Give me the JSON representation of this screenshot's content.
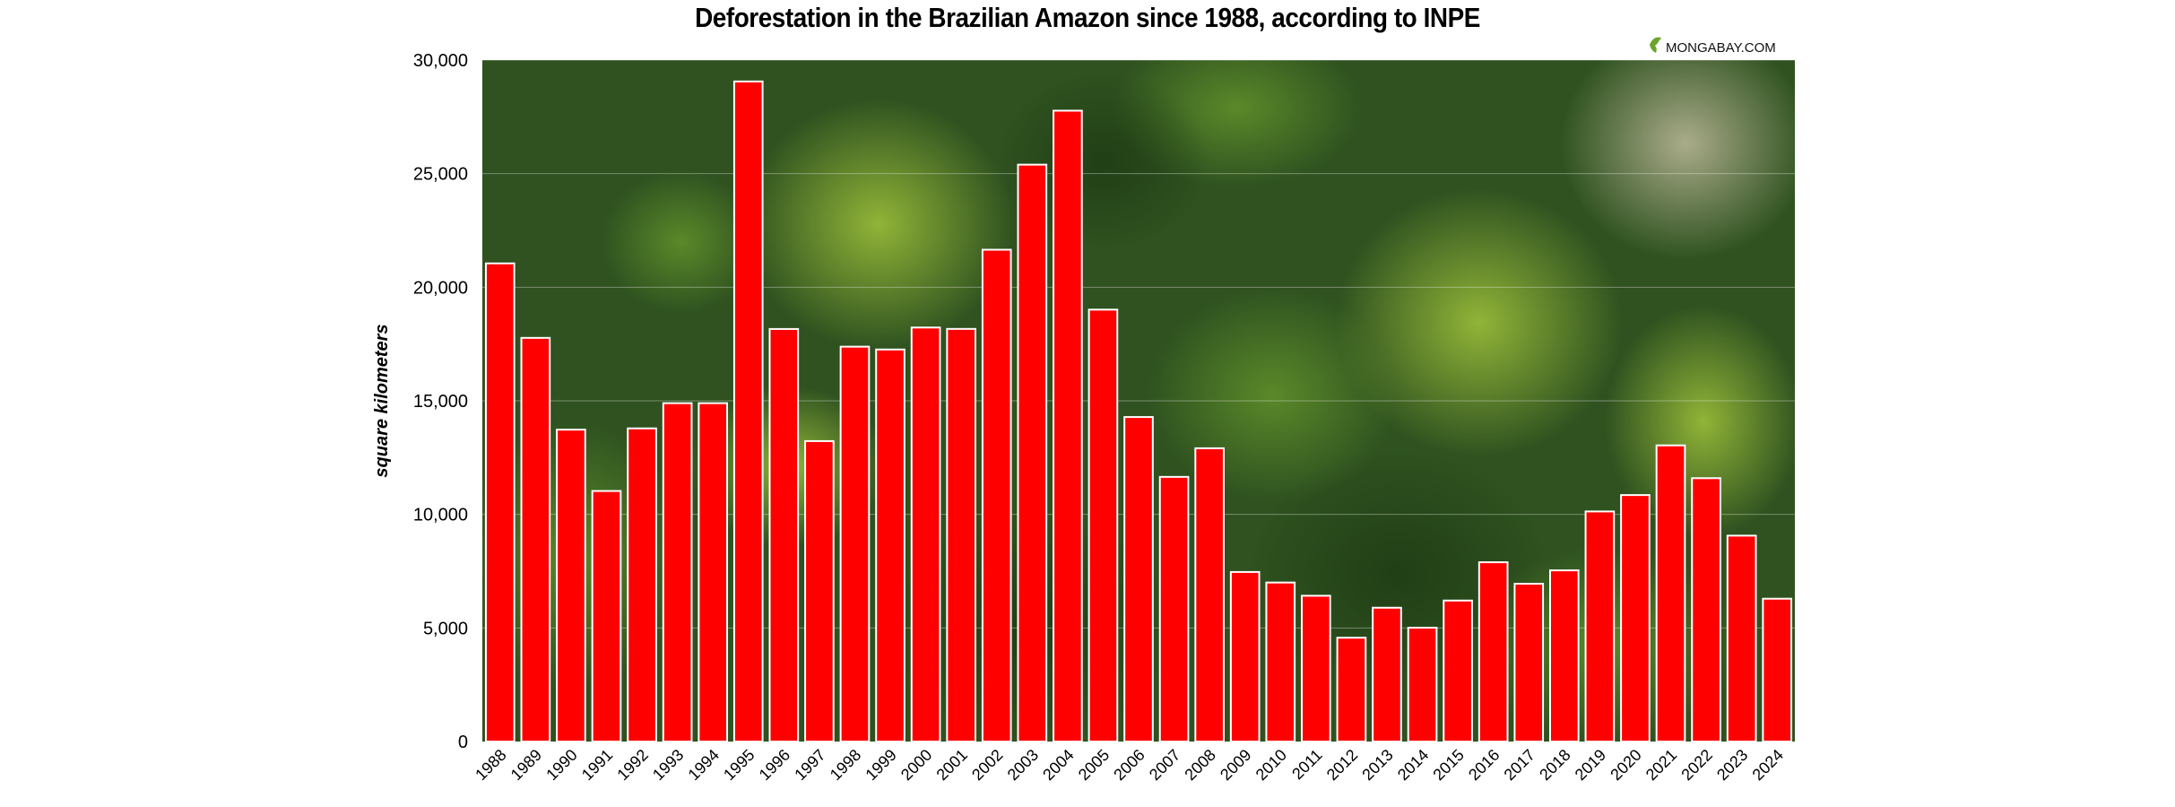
{
  "chart_data": {
    "type": "bar",
    "title": "Deforestation in the Brazilian Amazon since 1988, according to INPE",
    "ylabel": "square kilometers",
    "xlabel": "",
    "ylim": [
      0,
      30000
    ],
    "yticks": [
      "0",
      "5,000",
      "10,000",
      "15,000",
      "20,000",
      "25,000",
      "30,000"
    ],
    "grid": true,
    "categories": [
      "1988",
      "1989",
      "1990",
      "1991",
      "1992",
      "1993",
      "1994",
      "1995",
      "1996",
      "1997",
      "1998",
      "1999",
      "2000",
      "2001",
      "2002",
      "2003",
      "2004",
      "2005",
      "2006",
      "2007",
      "2008",
      "2009",
      "2010",
      "2011",
      "2012",
      "2013",
      "2014",
      "2015",
      "2016",
      "2017",
      "2018",
      "2019",
      "2020",
      "2021",
      "2022",
      "2023",
      "2024"
    ],
    "values": [
      21050,
      17770,
      13730,
      11030,
      13786,
      14896,
      14896,
      29059,
      18161,
      13227,
      17383,
      17259,
      18226,
      18165,
      21651,
      25396,
      27772,
      19014,
      14286,
      11651,
      12911,
      7464,
      7000,
      6418,
      4571,
      5891,
      5012,
      6207,
      7893,
      6947,
      7536,
      10129,
      10851,
      13038,
      11594,
      9064,
      6288
    ],
    "bar_color": "#ff0000",
    "background": "aerial rainforest canopy photo"
  },
  "credit": {
    "text": "MONGABAY.COM",
    "icon": "frog-logo-icon"
  }
}
